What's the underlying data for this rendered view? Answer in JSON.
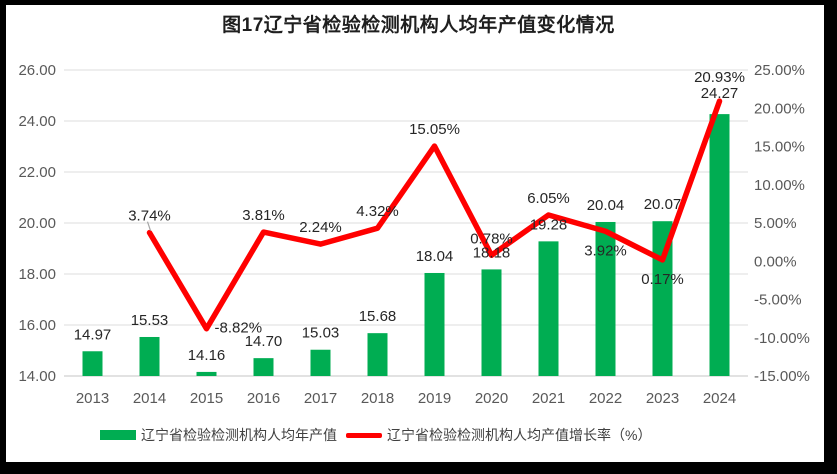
{
  "chart_data": {
    "type": "combo-bar-line",
    "title": "图17辽宁省检验检测机构人均年产值变化情况",
    "categories": [
      "2013",
      "2014",
      "2015",
      "2016",
      "2017",
      "2018",
      "2019",
      "2020",
      "2021",
      "2022",
      "2023",
      "2024"
    ],
    "series": [
      {
        "name": "辽宁省检验检测机构人均年产值",
        "type": "bar",
        "axis": "left",
        "color": "#00AD52",
        "values": [
          14.97,
          15.53,
          14.16,
          14.7,
          15.03,
          15.68,
          18.04,
          18.18,
          19.28,
          20.04,
          20.07,
          24.27
        ],
        "labels": [
          "14.97",
          "15.53",
          "14.16",
          "14.70",
          "15.03",
          "15.68",
          "18.04",
          "18.18",
          "19.28",
          "20.04",
          "20.07",
          "24.27"
        ]
      },
      {
        "name": "辽宁省检验检测机构人均产值增长率（%）",
        "type": "line",
        "axis": "right",
        "color": "#FF0000",
        "values": [
          null,
          3.74,
          -8.82,
          3.81,
          2.24,
          4.32,
          15.05,
          0.78,
          6.05,
          3.92,
          0.17,
          20.93
        ],
        "labels": [
          null,
          "3.74%",
          "-8.82%",
          "3.81%",
          "2.24%",
          "4.32%",
          "15.05%",
          "0.78%",
          "6.05%",
          "3.92%",
          "0.17%",
          "20.93%"
        ],
        "label_pos": [
          null,
          "above",
          "right",
          "above",
          "above",
          "above",
          "above",
          "above",
          "above",
          "below",
          "below",
          "above-high"
        ]
      }
    ],
    "left_axis": {
      "min": 14,
      "max": 26,
      "step": 2,
      "ticks": [
        {
          "v": 26,
          "label": "26.00"
        },
        {
          "v": 24,
          "label": "24.00"
        },
        {
          "v": 22,
          "label": "22.00"
        },
        {
          "v": 20,
          "label": "20.00"
        },
        {
          "v": 18,
          "label": "18.00"
        },
        {
          "v": 16,
          "label": "16.00"
        },
        {
          "v": 14,
          "label": "14.00"
        }
      ]
    },
    "right_axis": {
      "min": -15,
      "max": 25,
      "step": 5,
      "ticks": [
        {
          "v": 25,
          "label": "25.00%"
        },
        {
          "v": 20,
          "label": "20.00%"
        },
        {
          "v": 15,
          "label": "15.00%"
        },
        {
          "v": 10,
          "label": "10.00%"
        },
        {
          "v": 5,
          "label": "5.00%"
        },
        {
          "v": 0,
          "label": "0.00%"
        },
        {
          "v": -5,
          "label": "-5.00%"
        },
        {
          "v": -10,
          "label": "-10.00%"
        },
        {
          "v": -15,
          "label": "-15.00%"
        }
      ]
    },
    "grid": true,
    "legend_position": "bottom",
    "colors": {
      "bar": "#00AD52",
      "line": "#FF0000",
      "grid": "#DCDCDC",
      "axis_line": "#C6C6C6",
      "tick_text": "#595959",
      "data_label": "#262626",
      "title_text": "#1F1F1F",
      "frame": "#000000",
      "leader": "#A6A6A6"
    }
  }
}
